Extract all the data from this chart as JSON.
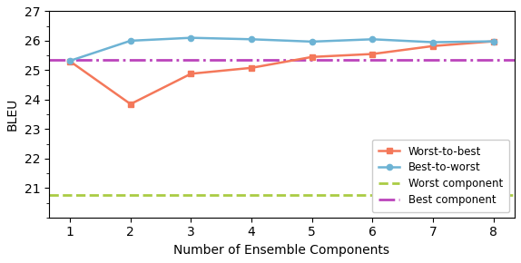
{
  "x": [
    1,
    2,
    3,
    4,
    5,
    6,
    7,
    8
  ],
  "worst_to_best": [
    25.3,
    23.85,
    24.88,
    25.08,
    25.45,
    25.55,
    25.82,
    25.98
  ],
  "best_to_worst": [
    25.32,
    26.0,
    26.1,
    26.05,
    25.97,
    26.05,
    25.95,
    25.98
  ],
  "worst_component": 20.75,
  "best_component": 25.35,
  "worst_to_best_color": "#F4785A",
  "best_to_worst_color": "#6DB3D4",
  "worst_component_color": "#AACC44",
  "best_component_color": "#BB44BB",
  "xlabel": "Number of Ensemble Components",
  "ylabel": "BLEU",
  "ylim": [
    20,
    27
  ],
  "yticks": [
    21,
    22,
    23,
    24,
    25,
    26,
    27
  ],
  "xticks": [
    1,
    2,
    3,
    4,
    5,
    6,
    7,
    8
  ],
  "legend_labels": [
    "Worst-to-best",
    "Best-to-worst",
    "Worst component",
    "Best component"
  ],
  "figsize": [
    5.74,
    2.9
  ],
  "dpi": 100
}
